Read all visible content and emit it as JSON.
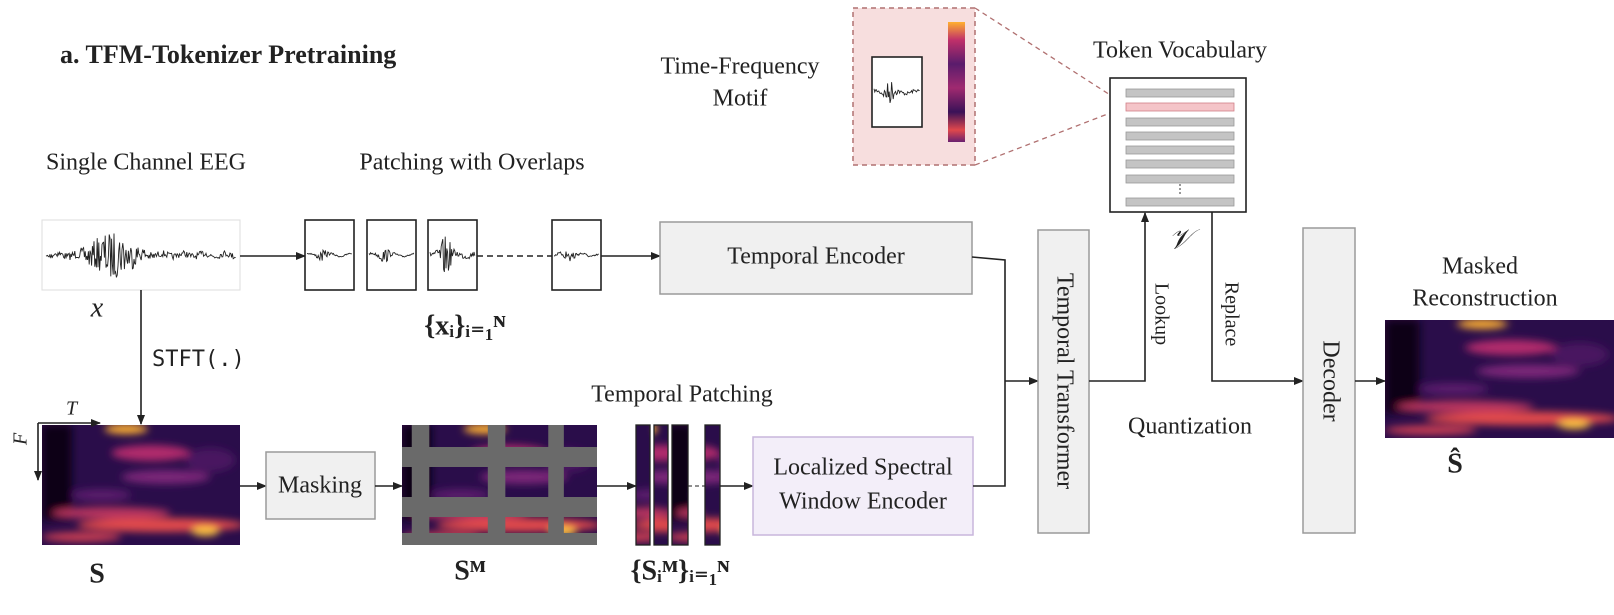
{
  "title": "a. TFM-Tokenizer Pretraining",
  "motif": {
    "label": [
      "Time-Frequency",
      "Motif"
    ]
  },
  "vocabulary": {
    "title": "Token Vocabulary",
    "symbol": "𝒱"
  },
  "input": {
    "title": "Single Channel EEG",
    "symbol": "x",
    "transform": "STFT(.)"
  },
  "patching": {
    "title": "Patching with Overlaps",
    "symbol": "{xᵢ}ᵢ₌₁ᴺ"
  },
  "spectrogram": {
    "symbol": "S",
    "time_axis": "T",
    "freq_axis": "F"
  },
  "masking": {
    "label": "Masking",
    "symbol": "Sᴹ"
  },
  "temporal_patching": {
    "title": "Temporal Patching",
    "symbol": "{Sᵢᴹ}ᵢ₌₁ᴺ"
  },
  "nodes": {
    "temporal_encoder": "Temporal Encoder",
    "spectral_encoder": [
      "Localized Spectral",
      "Window Encoder"
    ],
    "temporal_transformer": "Temporal Transformer",
    "decoder": "Decoder"
  },
  "quantization": {
    "title": "Quantization",
    "lookup": "Lookup",
    "replace": "Replace"
  },
  "output": {
    "label": [
      "Masked",
      "Reconstruction"
    ],
    "symbol": "Ŝ"
  }
}
